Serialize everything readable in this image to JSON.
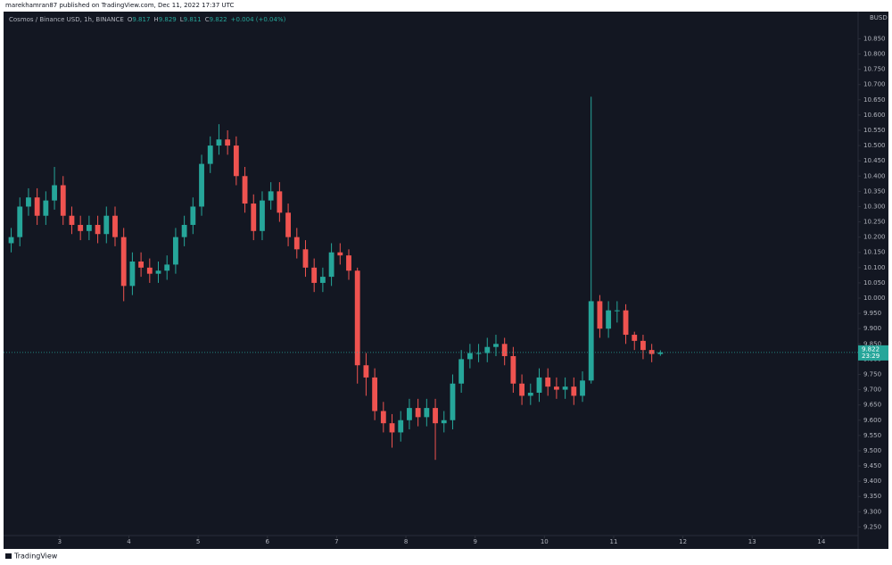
{
  "chart_data": {
    "type": "candlestick",
    "header": "marekhamran87 published on TradingView.com, Dec 11, 2022 17:37 UTC",
    "title": "Cosmos / Binance USD, 1h, BINANCE",
    "legend_labels": [
      "O",
      "H",
      "L",
      "C"
    ],
    "change": "+0.004 (+0.04%)",
    "currency": "BUSD",
    "countdown": "23:29",
    "footer": "TradingView",
    "up_color": "#26a69a",
    "down_color": "#ef5350",
    "x": [
      2.3,
      2.425,
      2.55,
      2.675,
      2.8,
      2.925,
      3.05,
      3.175,
      3.3,
      3.425,
      3.55,
      3.675,
      3.8,
      3.925,
      4.05,
      4.175,
      4.3,
      4.425,
      4.55,
      4.675,
      4.8,
      4.925,
      5.05,
      5.175,
      5.3,
      5.425,
      5.55,
      5.675,
      5.8,
      5.925,
      6.05,
      6.175,
      6.3,
      6.425,
      6.55,
      6.675,
      6.8,
      6.925,
      7.05,
      7.175,
      7.3,
      7.425,
      7.55,
      7.675,
      7.8,
      7.925,
      8.05,
      8.175,
      8.3,
      8.425,
      8.55,
      8.675,
      8.8,
      8.925,
      9.05,
      9.175,
      9.3,
      9.425,
      9.55,
      9.675,
      9.8,
      9.925,
      10.05,
      10.175,
      10.3,
      10.425,
      10.55,
      10.675,
      10.8,
      10.925,
      11.05,
      11.175,
      11.3,
      11.425,
      11.55,
      11.675
    ],
    "open": [
      10.18,
      10.2,
      10.3,
      10.33,
      10.27,
      10.32,
      10.37,
      10.27,
      10.24,
      10.22,
      10.24,
      10.21,
      10.27,
      10.2,
      10.04,
      10.12,
      10.1,
      10.08,
      10.09,
      10.11,
      10.2,
      10.24,
      10.3,
      10.44,
      10.5,
      10.52,
      10.5,
      10.4,
      10.31,
      10.22,
      10.32,
      10.35,
      10.28,
      10.2,
      10.16,
      10.1,
      10.05,
      10.07,
      10.15,
      10.14,
      10.09,
      9.78,
      9.74,
      9.63,
      9.59,
      9.56,
      9.6,
      9.64,
      9.61,
      9.64,
      9.59,
      9.6,
      9.72,
      9.8,
      9.82,
      9.82,
      9.84,
      9.85,
      9.81,
      9.72,
      9.68,
      9.69,
      9.74,
      9.71,
      9.7,
      9.71,
      9.68,
      9.73,
      9.99,
      9.9,
      9.96,
      9.96,
      9.88,
      9.86,
      9.83,
      9.817
    ],
    "high": [
      10.23,
      10.33,
      10.36,
      10.36,
      10.35,
      10.43,
      10.4,
      10.3,
      10.27,
      10.27,
      10.27,
      10.3,
      10.3,
      10.23,
      10.15,
      10.15,
      10.13,
      10.12,
      10.14,
      10.23,
      10.27,
      10.33,
      10.47,
      10.53,
      10.57,
      10.55,
      10.53,
      10.43,
      10.34,
      10.35,
      10.38,
      10.38,
      10.31,
      10.23,
      10.19,
      10.13,
      10.1,
      10.18,
      10.18,
      10.16,
      10.1,
      9.82,
      9.77,
      9.66,
      9.62,
      9.63,
      9.67,
      9.67,
      9.67,
      9.67,
      9.63,
      9.75,
      9.83,
      9.85,
      9.85,
      9.87,
      9.88,
      9.87,
      9.84,
      9.75,
      9.72,
      9.77,
      9.77,
      9.74,
      9.74,
      9.74,
      9.76,
      10.66,
      10.01,
      9.99,
      9.99,
      9.98,
      9.89,
      9.88,
      9.85,
      9.829
    ],
    "low": [
      10.15,
      10.17,
      10.27,
      10.24,
      10.24,
      10.29,
      10.24,
      10.21,
      10.19,
      10.19,
      10.18,
      10.18,
      10.17,
      9.99,
      10.01,
      10.07,
      10.05,
      10.05,
      10.06,
      10.08,
      10.17,
      10.21,
      10.27,
      10.41,
      10.47,
      10.47,
      10.37,
      10.28,
      10.19,
      10.19,
      10.29,
      10.25,
      10.17,
      10.13,
      10.07,
      10.02,
      10.02,
      10.04,
      10.11,
      10.06,
      9.72,
      9.68,
      9.6,
      9.56,
      9.51,
      9.53,
      9.57,
      9.58,
      9.58,
      9.47,
      9.56,
      9.57,
      9.69,
      9.77,
      9.79,
      9.79,
      9.81,
      9.78,
      9.69,
      9.65,
      9.65,
      9.66,
      9.68,
      9.67,
      9.67,
      9.65,
      9.66,
      9.72,
      9.87,
      9.87,
      9.92,
      9.85,
      9.83,
      9.8,
      9.79,
      9.811
    ],
    "close": [
      10.2,
      10.3,
      10.33,
      10.27,
      10.32,
      10.37,
      10.27,
      10.24,
      10.22,
      10.24,
      10.21,
      10.27,
      10.2,
      10.04,
      10.12,
      10.1,
      10.08,
      10.09,
      10.11,
      10.2,
      10.24,
      10.3,
      10.44,
      10.5,
      10.52,
      10.5,
      10.4,
      10.31,
      10.22,
      10.32,
      10.35,
      10.28,
      10.2,
      10.16,
      10.1,
      10.05,
      10.07,
      10.15,
      10.14,
      10.09,
      9.78,
      9.74,
      9.63,
      9.59,
      9.56,
      9.6,
      9.64,
      9.61,
      9.64,
      9.59,
      9.6,
      9.72,
      9.8,
      9.82,
      9.82,
      9.84,
      9.85,
      9.81,
      9.72,
      9.68,
      9.69,
      9.74,
      9.71,
      9.7,
      9.71,
      9.68,
      9.73,
      9.99,
      9.9,
      9.96,
      9.96,
      9.88,
      9.86,
      9.83,
      9.817,
      9.822
    ],
    "xlim": [
      2.19,
      14.53
    ],
    "xticks": [
      3,
      4,
      5,
      6,
      7,
      8,
      9,
      10,
      11,
      12,
      13,
      14
    ],
    "ylim": [
      9.222,
      10.939
    ],
    "yticks": [
      {
        "value": 9.25,
        "label": "9.250"
      },
      {
        "value": 9.3,
        "label": "9.300"
      },
      {
        "value": 9.35,
        "label": "9.350"
      },
      {
        "value": 9.4,
        "label": "9.400"
      },
      {
        "value": 9.45,
        "label": "9.450"
      },
      {
        "value": 9.5,
        "label": "9.500"
      },
      {
        "value": 9.55,
        "label": "9.550"
      },
      {
        "value": 9.6,
        "label": "9.600"
      },
      {
        "value": 9.65,
        "label": "9.650"
      },
      {
        "value": 9.7,
        "label": "9.700"
      },
      {
        "value": 9.75,
        "label": "9.750"
      },
      {
        "value": 9.8,
        "label": "9.800"
      },
      {
        "value": 9.85,
        "label": "9.850"
      },
      {
        "value": 9.9,
        "label": "9.900"
      },
      {
        "value": 9.95,
        "label": "9.950"
      },
      {
        "value": 10.0,
        "label": "10.000"
      },
      {
        "value": 10.05,
        "label": "10.050"
      },
      {
        "value": 10.1,
        "label": "10.100"
      },
      {
        "value": 10.15,
        "label": "10.150"
      },
      {
        "value": 10.2,
        "label": "10.200"
      },
      {
        "value": 10.25,
        "label": "10.250"
      },
      {
        "value": 10.3,
        "label": "10.300"
      },
      {
        "value": 10.35,
        "label": "10.350"
      },
      {
        "value": 10.4,
        "label": "10.400"
      },
      {
        "value": 10.45,
        "label": "10.450"
      },
      {
        "value": 10.5,
        "label": "10.500"
      },
      {
        "value": 10.55,
        "label": "10.550"
      },
      {
        "value": 10.6,
        "label": "10.600"
      },
      {
        "value": 10.65,
        "label": "10.650"
      },
      {
        "value": 10.7,
        "label": "10.700"
      },
      {
        "value": 10.75,
        "label": "10.750"
      },
      {
        "value": 10.8,
        "label": "10.800"
      },
      {
        "value": 10.85,
        "label": "10.850"
      }
    ]
  }
}
